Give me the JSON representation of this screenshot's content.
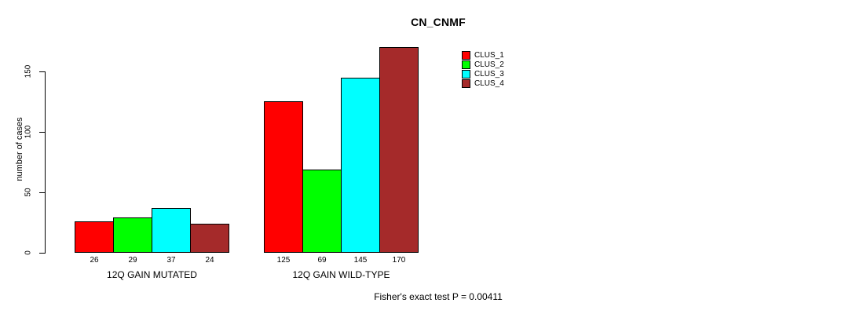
{
  "chart_data": {
    "type": "bar",
    "title": "CN_CNMF",
    "ylabel": "number of cases",
    "xlabel": "",
    "ylim": [
      0,
      170
    ],
    "yticks": [
      0,
      50,
      100,
      150
    ],
    "grid": false,
    "legend_position": "upper-right",
    "categories": [
      "12Q GAIN MUTATED",
      "12Q GAIN WILD-TYPE"
    ],
    "series": [
      {
        "name": "CLUS_1",
        "color": "#ff0000",
        "values": [
          26,
          125
        ]
      },
      {
        "name": "CLUS_2",
        "color": "#00ff00",
        "values": [
          29,
          69
        ]
      },
      {
        "name": "CLUS_3",
        "color": "#00ffff",
        "values": [
          37,
          145
        ]
      },
      {
        "name": "CLUS_4",
        "color": "#a52a2a",
        "values": [
          24,
          170
        ]
      }
    ],
    "bar_value_labels": [
      [
        26,
        29,
        37,
        24
      ],
      [
        125,
        69,
        145,
        170
      ]
    ],
    "footnote": "Fisher's exact test P = 0.00411"
  }
}
